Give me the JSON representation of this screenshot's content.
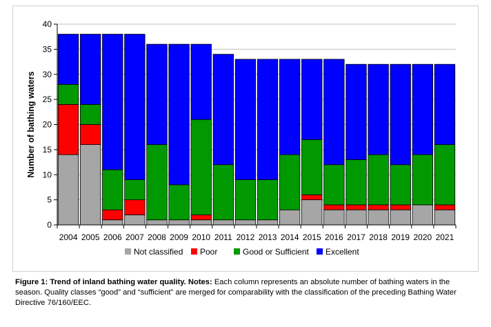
{
  "chart_data": {
    "type": "bar",
    "stacked": true,
    "ylabel": "Number of bathing waters",
    "xlabel": "",
    "ylim": [
      0,
      40
    ],
    "yticks": [
      0,
      5,
      10,
      15,
      20,
      25,
      30,
      35,
      40
    ],
    "legend_position": "bottom",
    "categories": [
      "2004",
      "2005",
      "2006",
      "2007",
      "2008",
      "2009",
      "2010",
      "2011",
      "2012",
      "2013",
      "2014",
      "2015",
      "2016",
      "2017",
      "2018",
      "2019",
      "2020",
      "2021"
    ],
    "series": [
      {
        "name": "Not classified",
        "color": "#a6a6a6",
        "values": [
          14,
          16,
          1,
          2,
          1,
          1,
          1,
          1,
          1,
          1,
          3,
          5,
          3,
          3,
          3,
          3,
          4,
          3
        ]
      },
      {
        "name": "Poor",
        "color": "#ff0000",
        "values": [
          10,
          4,
          2,
          3,
          0,
          0,
          1,
          0,
          0,
          0,
          0,
          1,
          1,
          1,
          1,
          1,
          0,
          1
        ]
      },
      {
        "name": "Good or Sufficient",
        "color": "#009900",
        "values": [
          4,
          4,
          8,
          4,
          15,
          7,
          19,
          11,
          8,
          8,
          11,
          11,
          8,
          9,
          10,
          8,
          10,
          12
        ]
      },
      {
        "name": "Excellent",
        "color": "#0000ff",
        "values": [
          10,
          14,
          27,
          29,
          20,
          28,
          15,
          22,
          24,
          24,
          19,
          16,
          21,
          19,
          18,
          20,
          18,
          16
        ]
      }
    ]
  },
  "caption": {
    "title": "Figure 1: Trend of inland bathing water quality. Notes:",
    "text": " Each column represents an absolute number of bathing waters in the season. Quality classes “good” and “sufficient” are merged for comparability with the classification of the preceding Bathing Water Directive 76/160/EEC."
  }
}
